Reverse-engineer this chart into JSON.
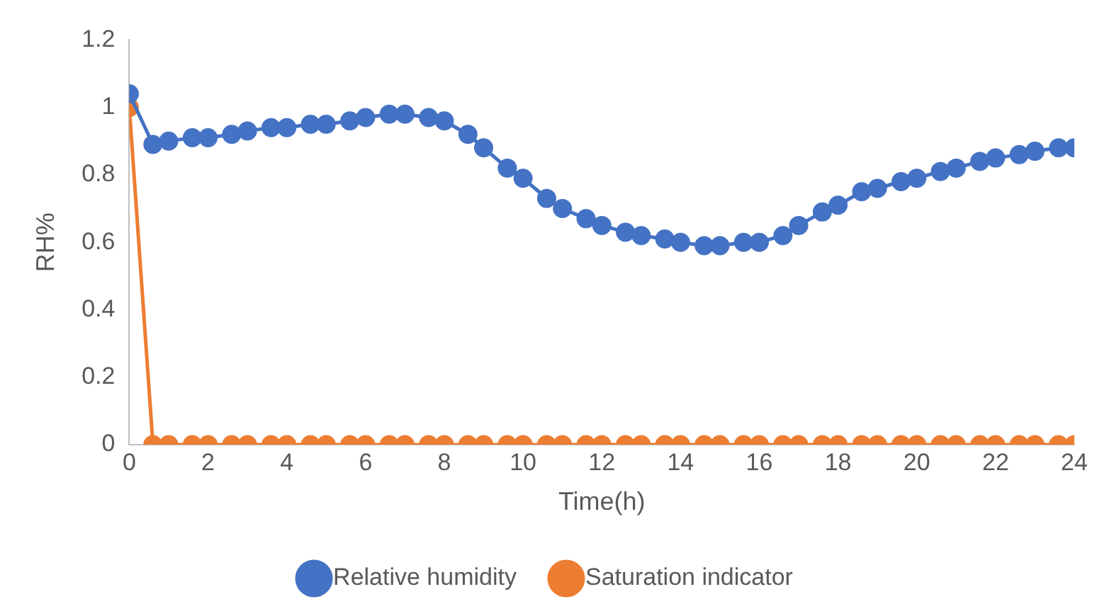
{
  "chart_data": {
    "type": "line",
    "xlabel": "Time(h)",
    "ylabel": "RH%",
    "x": [
      0,
      0.6,
      1,
      1.6,
      2,
      2.6,
      3,
      3.6,
      4,
      4.6,
      5,
      5.6,
      6,
      6.6,
      7,
      7.6,
      8,
      8.6,
      9,
      9.6,
      10,
      10.6,
      11,
      11.6,
      12,
      12.6,
      13,
      13.6,
      14,
      14.6,
      15,
      15.6,
      16,
      16.6,
      17,
      17.6,
      18,
      18.6,
      19,
      19.6,
      20,
      20.6,
      21,
      21.6,
      22,
      22.6,
      23,
      23.6,
      24
    ],
    "series": [
      {
        "name": "Relative humidity",
        "color": "#4472c4",
        "values": [
          1.04,
          0.89,
          0.9,
          0.91,
          0.91,
          0.92,
          0.93,
          0.94,
          0.94,
          0.95,
          0.95,
          0.96,
          0.97,
          0.98,
          0.98,
          0.97,
          0.96,
          0.92,
          0.88,
          0.82,
          0.79,
          0.73,
          0.7,
          0.67,
          0.65,
          0.63,
          0.62,
          0.61,
          0.6,
          0.59,
          0.59,
          0.6,
          0.6,
          0.62,
          0.65,
          0.69,
          0.71,
          0.75,
          0.76,
          0.78,
          0.79,
          0.81,
          0.82,
          0.84,
          0.85,
          0.86,
          0.87,
          0.88,
          0.88
        ]
      },
      {
        "name": "Saturation indicator",
        "color": "#ed7d31",
        "values": [
          1,
          0,
          0,
          0,
          0,
          0,
          0,
          0,
          0,
          0,
          0,
          0,
          0,
          0,
          0,
          0,
          0,
          0,
          0,
          0,
          0,
          0,
          0,
          0,
          0,
          0,
          0,
          0,
          0,
          0,
          0,
          0,
          0,
          0,
          0,
          0,
          0,
          0,
          0,
          0,
          0,
          0,
          0,
          0,
          0,
          0,
          0,
          0,
          0
        ]
      }
    ],
    "xlim": [
      0,
      24
    ],
    "xticks": [
      0,
      2,
      4,
      6,
      8,
      10,
      12,
      14,
      16,
      18,
      20,
      22,
      24
    ],
    "ylim": [
      0,
      1.2
    ],
    "yticks": [
      0,
      0.2,
      0.4,
      0.6,
      0.8,
      1,
      1.2
    ],
    "grid": false,
    "legend": "bottom",
    "marker": "circle",
    "line_style": "solid"
  }
}
